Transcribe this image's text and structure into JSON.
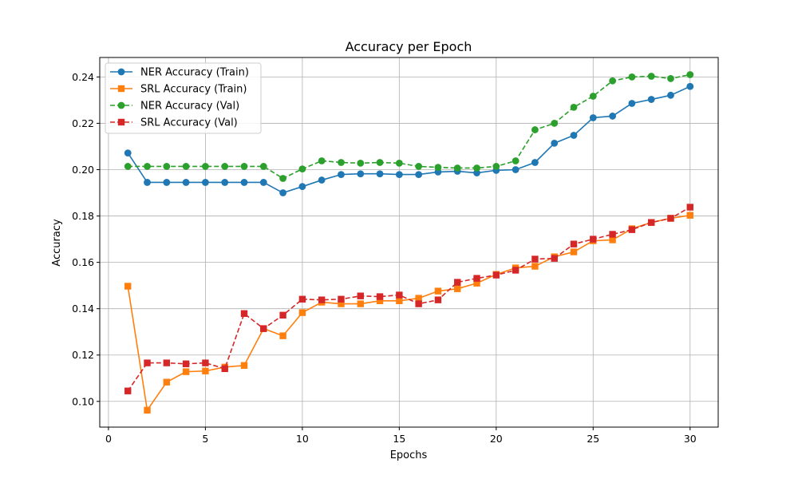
{
  "chart_data": {
    "type": "line",
    "title": "Accuracy per Epoch",
    "xlabel": "Epochs",
    "ylabel": "Accuracy",
    "xlim": [
      -0.45,
      31.45
    ],
    "ylim": [
      0.0889,
      0.2484
    ],
    "xticks": [
      0,
      5,
      10,
      15,
      20,
      25,
      30
    ],
    "yticks": [
      0.1,
      0.12,
      0.14,
      0.16,
      0.18,
      0.2,
      0.22,
      0.24
    ],
    "ytick_labels": [
      "0.10",
      "0.12",
      "0.14",
      "0.16",
      "0.18",
      "0.20",
      "0.22",
      "0.24"
    ],
    "grid": true,
    "legend_position": "top-left",
    "x": [
      1,
      2,
      3,
      4,
      5,
      6,
      7,
      8,
      9,
      10,
      11,
      12,
      13,
      14,
      15,
      16,
      17,
      18,
      19,
      20,
      21,
      22,
      23,
      24,
      25,
      26,
      27,
      28,
      29,
      30
    ],
    "series": [
      {
        "name": "NER Accuracy (Train)",
        "color": "#1f77b4",
        "linestyle": "solid",
        "marker": "circle",
        "values": [
          0.2072,
          0.1945,
          0.1945,
          0.1945,
          0.1945,
          0.1945,
          0.1945,
          0.1945,
          0.19,
          0.1927,
          0.1955,
          0.1979,
          0.1982,
          0.1982,
          0.1979,
          0.1979,
          0.199,
          0.1993,
          0.1986,
          0.1997,
          0.2,
          0.2031,
          0.2114,
          0.2148,
          0.2224,
          0.2231,
          0.2286,
          0.2303,
          0.2321,
          0.2359
        ]
      },
      {
        "name": "SRL Accuracy (Train)",
        "color": "#ff7f0e",
        "linestyle": "solid",
        "marker": "square",
        "values": [
          0.1497,
          0.0962,
          0.1083,
          0.1128,
          0.1131,
          0.1148,
          0.1155,
          0.1314,
          0.1283,
          0.1383,
          0.1428,
          0.1421,
          0.1421,
          0.1434,
          0.1434,
          0.1445,
          0.1476,
          0.1486,
          0.151,
          0.1548,
          0.1576,
          0.1583,
          0.1624,
          0.1645,
          0.1693,
          0.1697,
          0.1745,
          0.1772,
          0.179,
          0.1803
        ]
      },
      {
        "name": "NER Accuracy (Val)",
        "color": "#2ca02c",
        "linestyle": "dashed",
        "marker": "circle",
        "values": [
          0.2014,
          0.2014,
          0.2014,
          0.2014,
          0.2014,
          0.2014,
          0.2014,
          0.2014,
          0.1962,
          0.2003,
          0.2038,
          0.2031,
          0.2028,
          0.2031,
          0.2028,
          0.2014,
          0.201,
          0.2007,
          0.2007,
          0.2014,
          0.2038,
          0.2172,
          0.22,
          0.2269,
          0.2317,
          0.2383,
          0.24,
          0.2403,
          0.2393,
          0.241
        ]
      },
      {
        "name": "SRL Accuracy (Val)",
        "color": "#d62728",
        "linestyle": "dashed",
        "marker": "square",
        "values": [
          0.1045,
          0.1166,
          0.1166,
          0.1162,
          0.1166,
          0.1141,
          0.1379,
          0.1314,
          0.1372,
          0.1441,
          0.1438,
          0.1441,
          0.1455,
          0.1452,
          0.1459,
          0.1421,
          0.1438,
          0.1514,
          0.1531,
          0.1545,
          0.1566,
          0.1614,
          0.1617,
          0.1679,
          0.17,
          0.1721,
          0.1741,
          0.1772,
          0.179,
          0.1838
        ]
      }
    ]
  }
}
